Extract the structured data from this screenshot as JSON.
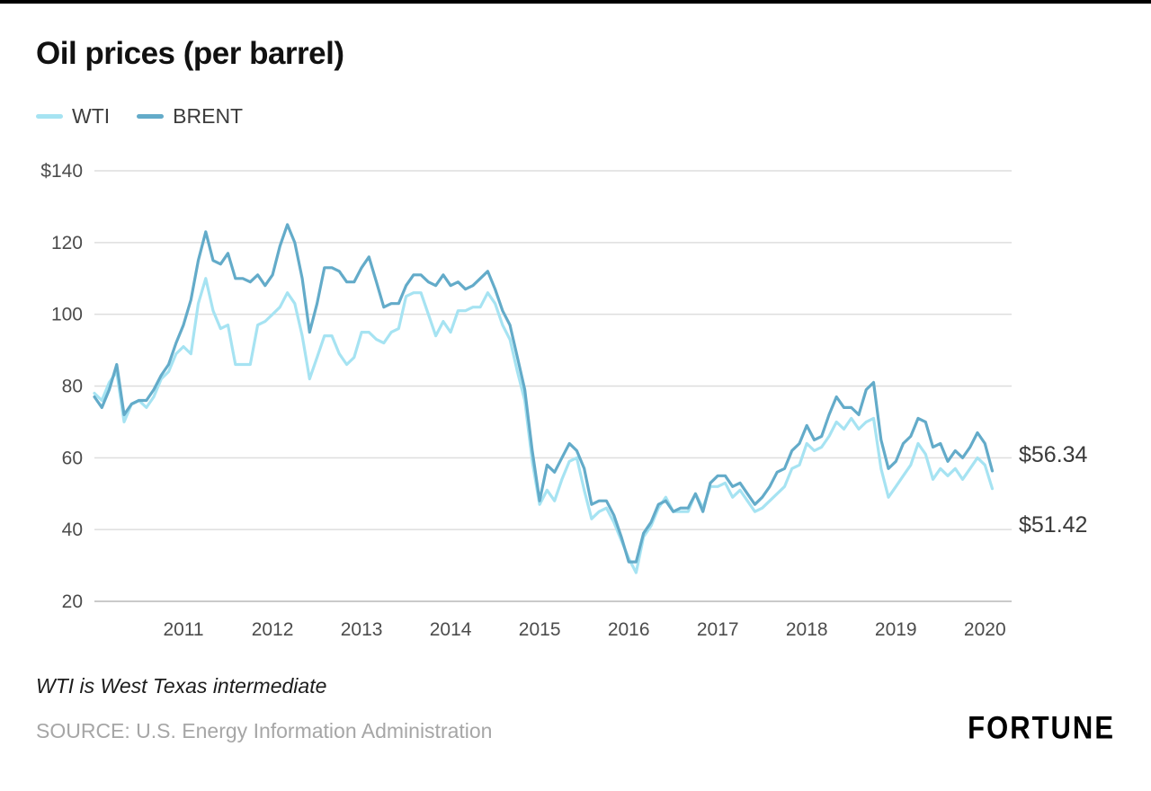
{
  "title": "Oil prices (per barrel)",
  "legend": [
    {
      "label": "WTI"
    },
    {
      "label": "BRENT"
    }
  ],
  "annotations": {
    "brent": {
      "label": "$56.34",
      "value": 56.34
    },
    "wti": {
      "label": "$51.42",
      "value": 51.42
    }
  },
  "footnote": "WTI is West Texas intermediate",
  "source": "SOURCE: U.S. Energy Information Administration",
  "logo": "FORTUNE",
  "chart_data": {
    "type": "line",
    "title": "Oil prices (per barrel)",
    "x_unit": "monthly, 2010-01 through 2020-02",
    "x_start": 2010,
    "x_step": 0.0833,
    "xlim": [
      2010,
      2020.3
    ],
    "ylim": [
      20,
      140
    ],
    "yticks": [
      20,
      40,
      60,
      80,
      100,
      120,
      140
    ],
    "ytick_labels": [
      "20",
      "40",
      "60",
      "80",
      "100",
      "120",
      "$140"
    ],
    "xticks": [
      2011,
      2012,
      2013,
      2014,
      2015,
      2016,
      2017,
      2018,
      2019,
      2020
    ],
    "grid": true,
    "legend_position": "top-left",
    "series": [
      {
        "name": "WTI",
        "color": "#a6e3f2",
        "values": [
          78,
          76,
          81,
          84,
          70,
          75,
          76,
          74,
          77,
          82,
          84,
          89,
          91,
          89,
          103,
          110,
          101,
          96,
          97,
          86,
          86,
          86,
          97,
          98,
          100,
          102,
          106,
          103,
          94,
          82,
          88,
          94,
          94,
          89,
          86,
          88,
          95,
          95,
          93,
          92,
          95,
          96,
          105,
          106,
          106,
          100,
          94,
          98,
          95,
          101,
          101,
          102,
          102,
          106,
          103,
          97,
          93,
          84,
          76,
          59,
          47,
          51,
          48,
          54,
          59,
          60,
          51,
          43,
          45,
          46,
          42,
          37,
          32,
          28,
          38,
          41,
          46,
          49,
          45,
          45,
          45,
          50,
          46,
          52,
          52,
          53,
          49,
          51,
          48,
          45,
          46,
          48,
          50,
          52,
          57,
          58,
          64,
          62,
          63,
          66,
          70,
          68,
          71,
          68,
          70,
          71,
          57,
          49,
          52,
          55,
          58,
          64,
          61,
          54,
          57,
          55,
          57,
          54,
          57,
          60,
          58,
          51.42
        ]
      },
      {
        "name": "BRENT",
        "color": "#63abc9",
        "values": [
          77,
          74,
          79,
          86,
          72,
          75,
          76,
          76,
          79,
          83,
          86,
          92,
          97,
          104,
          115,
          123,
          115,
          114,
          117,
          110,
          110,
          109,
          111,
          108,
          111,
          119,
          125,
          120,
          110,
          95,
          103,
          113,
          113,
          112,
          109,
          109,
          113,
          116,
          109,
          102,
          103,
          103,
          108,
          111,
          111,
          109,
          108,
          111,
          108,
          109,
          107,
          108,
          110,
          112,
          107,
          101,
          97,
          88,
          79,
          62,
          48,
          58,
          56,
          60,
          64,
          62,
          57,
          47,
          48,
          48,
          44,
          38,
          31,
          31,
          39,
          42,
          47,
          48,
          45,
          46,
          46,
          50,
          45,
          53,
          55,
          55,
          52,
          53,
          50,
          47,
          49,
          52,
          56,
          57,
          62,
          64,
          69,
          65,
          66,
          72,
          77,
          74,
          74,
          72,
          79,
          81,
          65,
          57,
          59,
          64,
          66,
          71,
          70,
          63,
          64,
          59,
          62,
          60,
          63,
          67,
          64,
          56.34
        ]
      }
    ]
  }
}
